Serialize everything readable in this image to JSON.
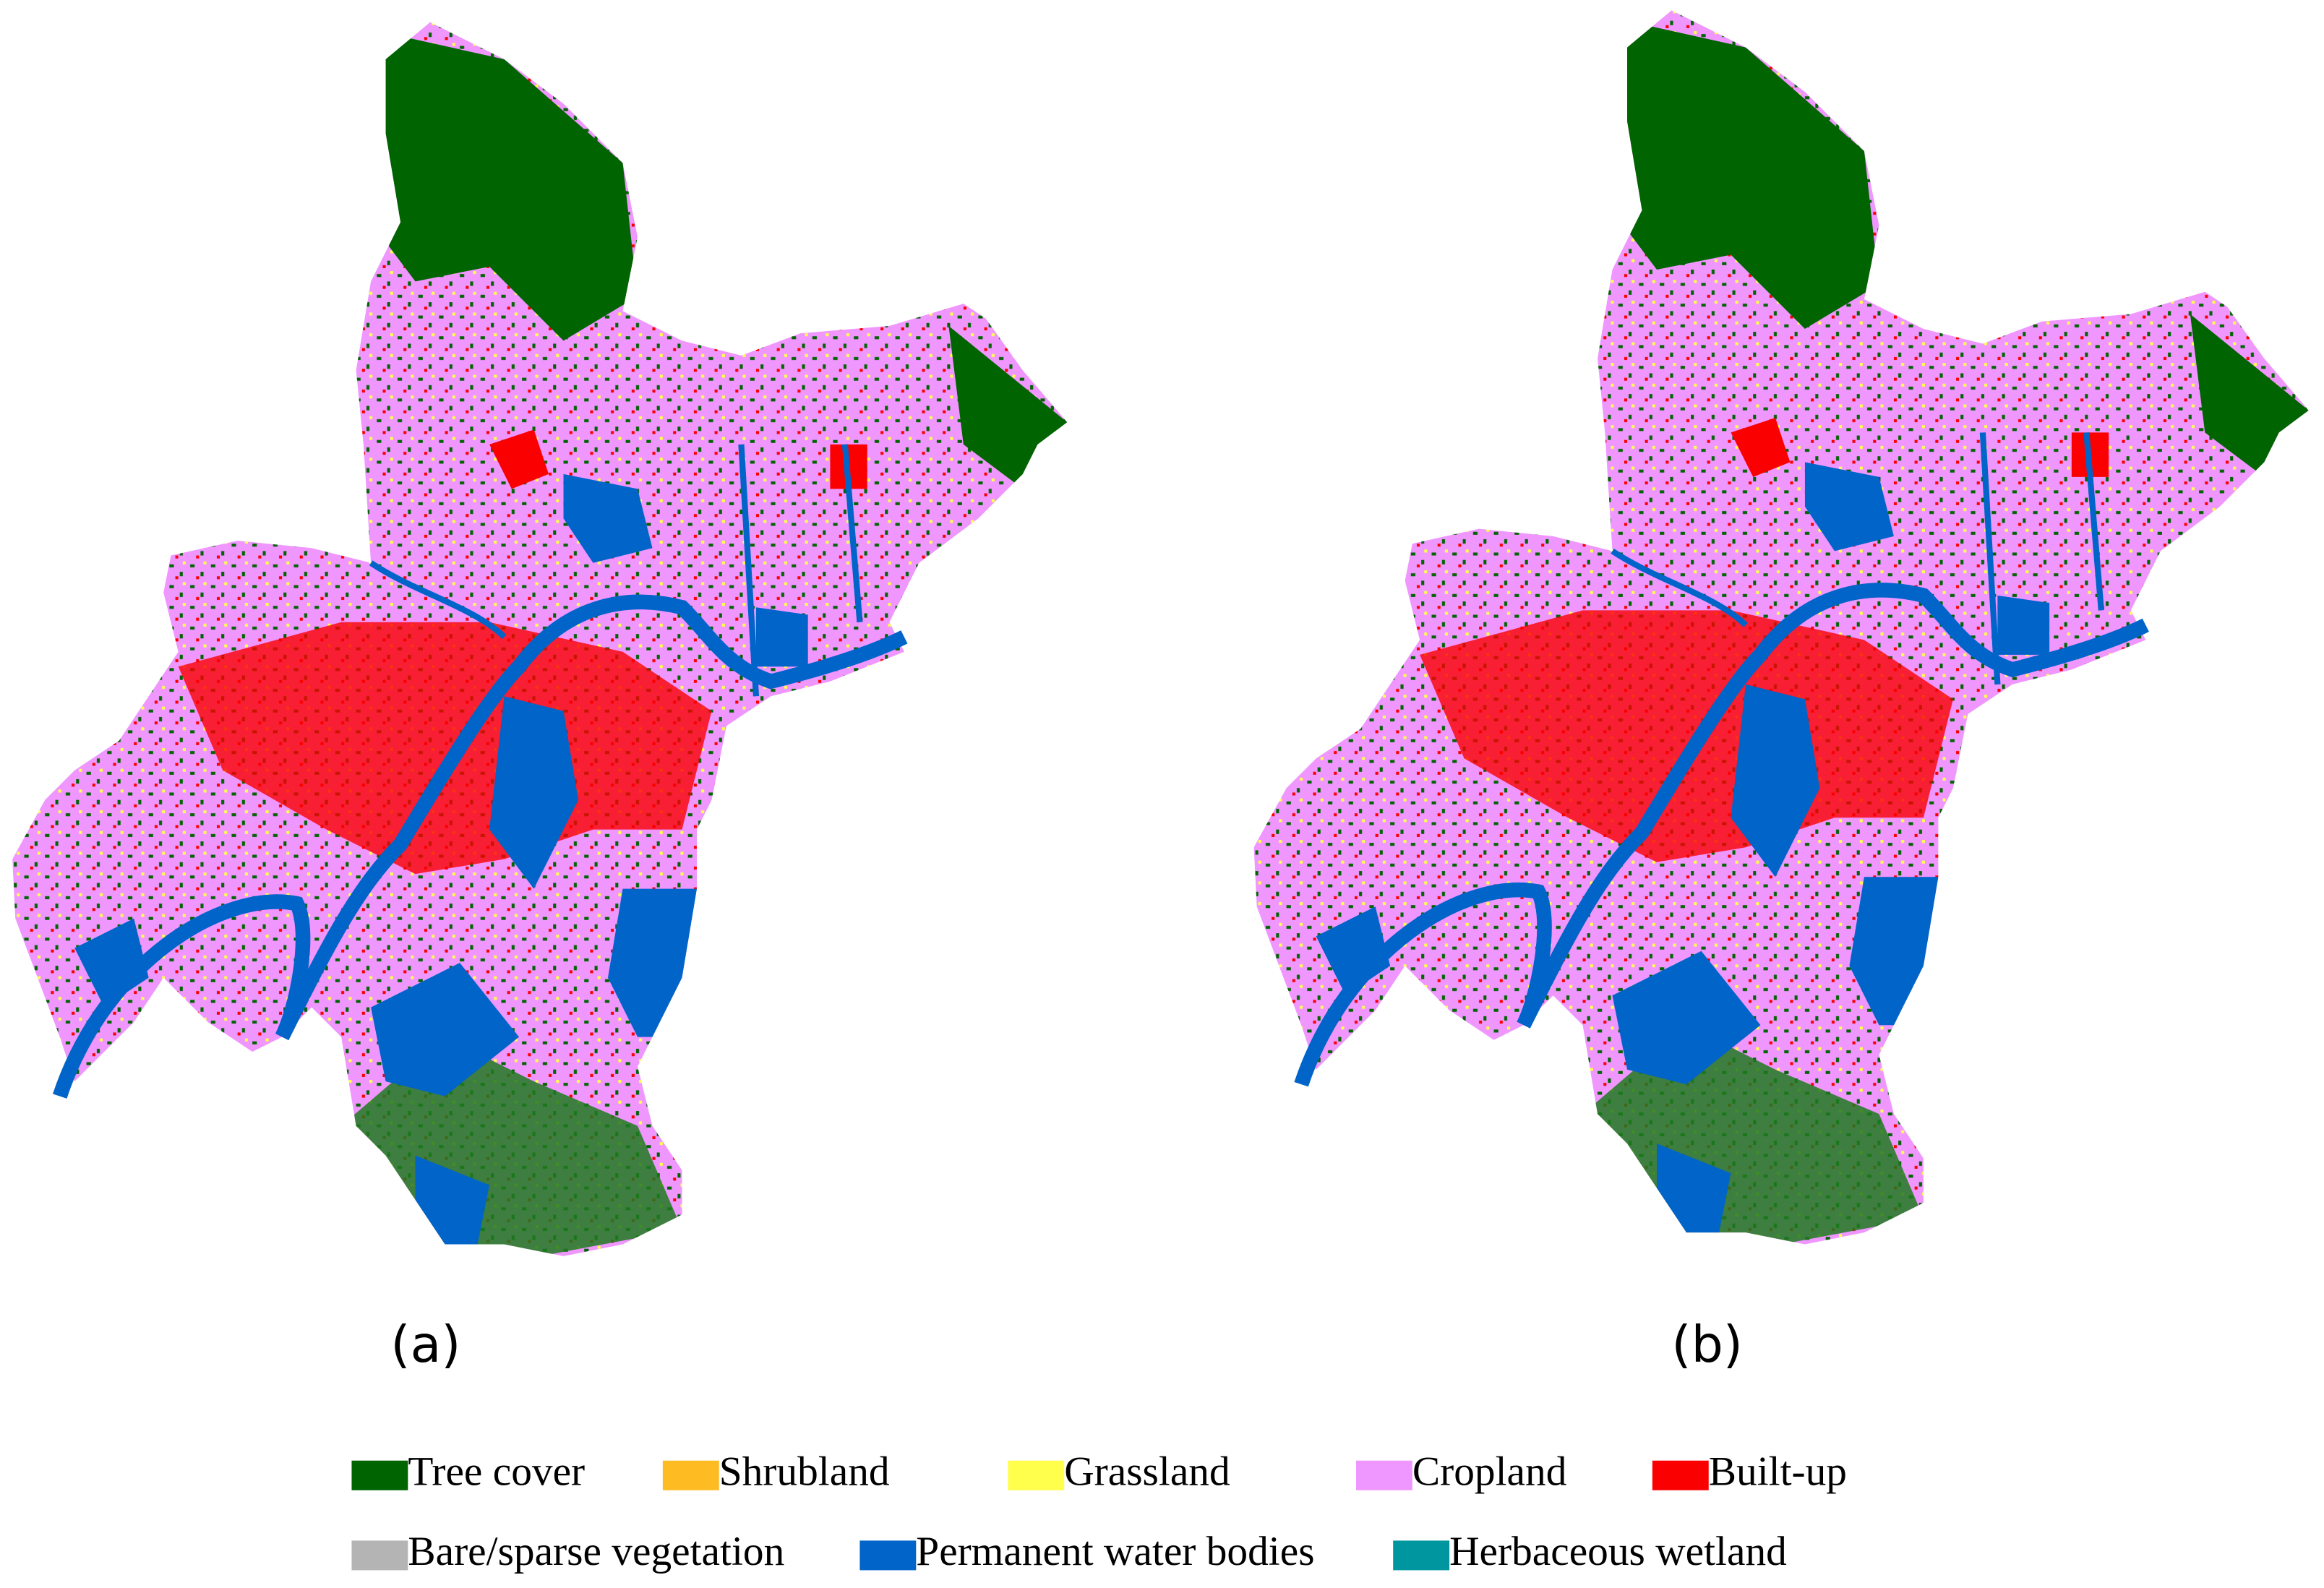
{
  "panels": [
    {
      "label": "(a)"
    },
    {
      "label": "(b)"
    }
  ],
  "legend": {
    "items": [
      {
        "label": "Tree cover",
        "color": "#006400"
      },
      {
        "label": "Shrubland",
        "color": "#ffbb22"
      },
      {
        "label": "Grassland",
        "color": "#ffff4c"
      },
      {
        "label": "Cropland",
        "color": "#f096ff"
      },
      {
        "label": "Built-up",
        "color": "#fa0000"
      },
      {
        "label": "Bare/sparse vegetation",
        "color": "#b4b4b4"
      },
      {
        "label": "Permanent water bodies",
        "color": "#0064c8"
      },
      {
        "label": "Herbaceous wetland",
        "color": "#0096a0"
      }
    ]
  }
}
